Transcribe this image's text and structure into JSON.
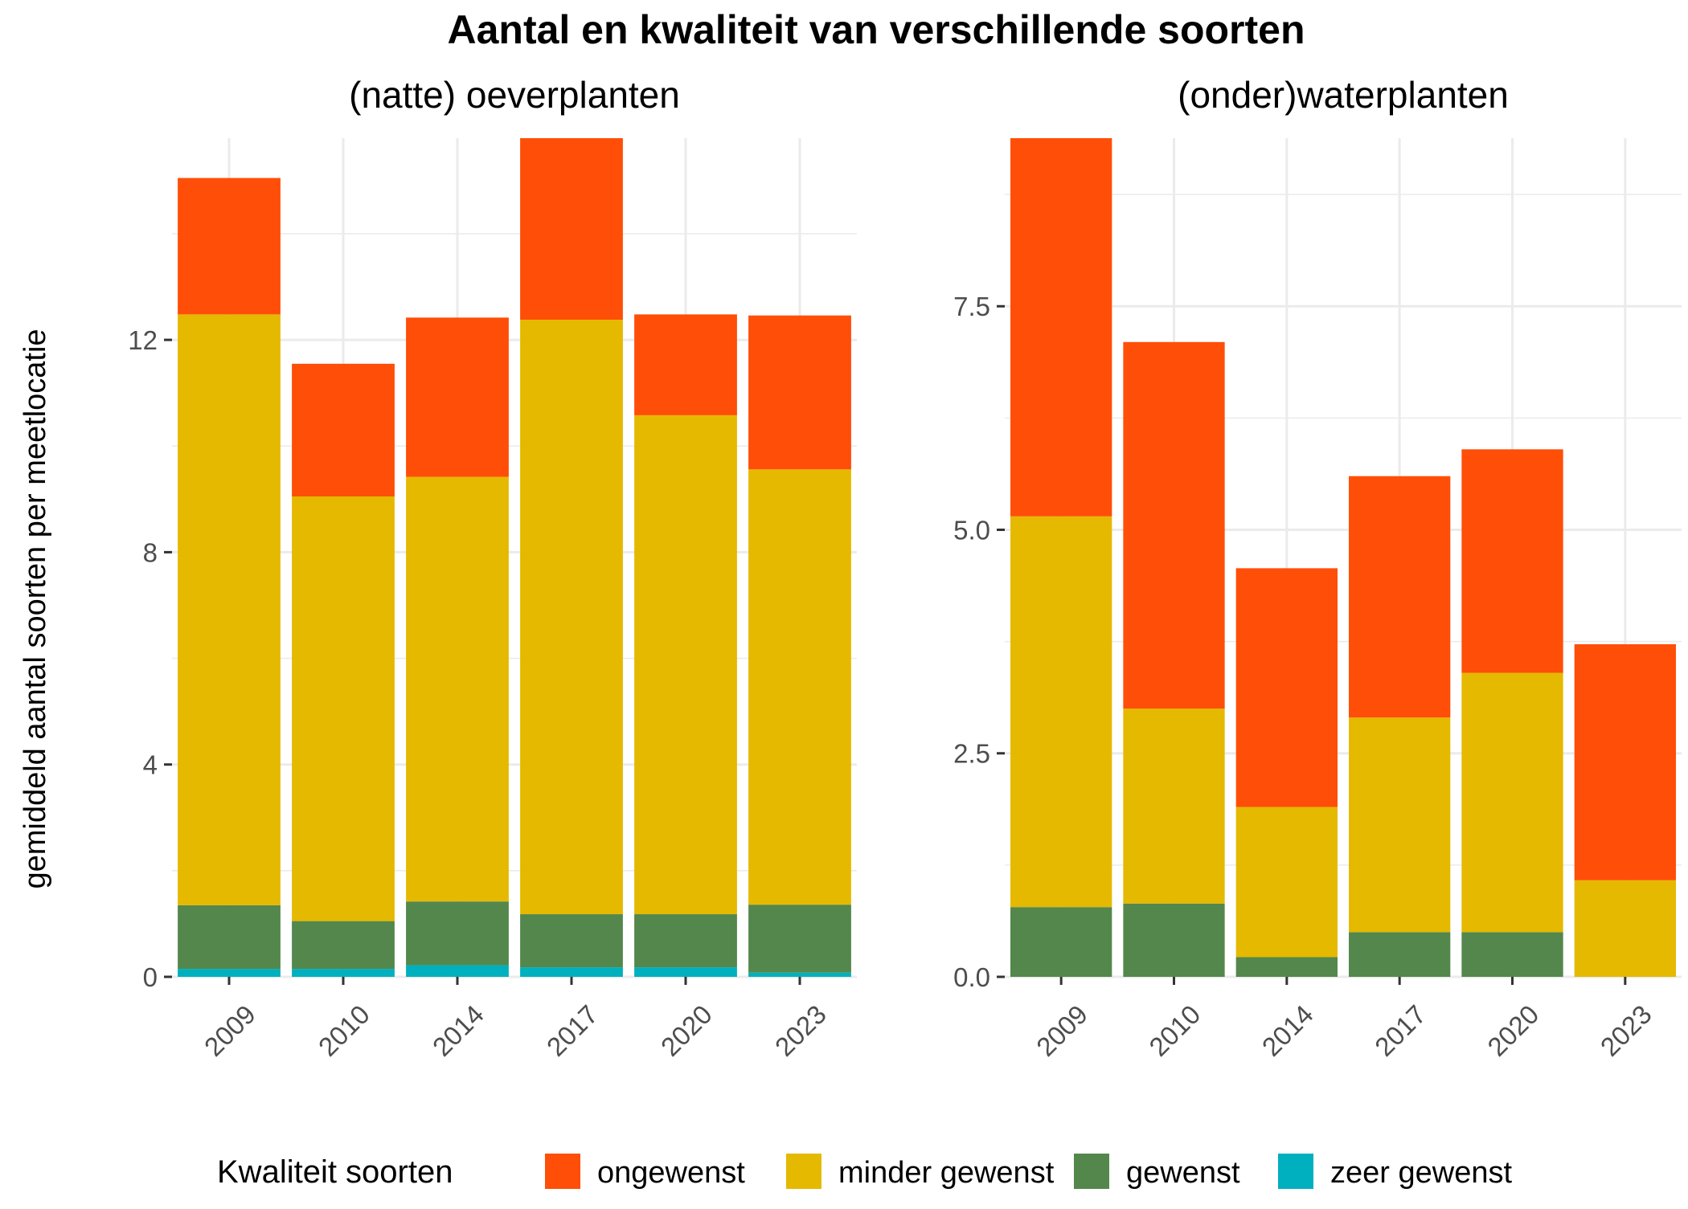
{
  "title": "Aantal en kwaliteit van verschillende soorten",
  "ylabel": "gemiddeld aantal soorten per meetlocatie",
  "legend": {
    "title": "Kwaliteit soorten",
    "position": "bottom",
    "items": [
      {
        "key": "ongewenst",
        "label": "ongewenst",
        "color": "#FF4E08"
      },
      {
        "key": "minder_gewenst",
        "label": "minder gewenst",
        "color": "#E5B900"
      },
      {
        "key": "gewenst",
        "label": "gewenst",
        "color": "#54874C"
      },
      {
        "key": "zeer_gewenst",
        "label": "zeer gewenst",
        "color": "#00B0BE"
      }
    ]
  },
  "chart_data": [
    {
      "type": "bar",
      "stacked": true,
      "panel_title": "(natte) oeverplanten",
      "categories": [
        "2009",
        "2010",
        "2014",
        "2017",
        "2020",
        "2023"
      ],
      "ylim": [
        0,
        15.8
      ],
      "yticks": [
        0,
        4,
        8,
        12
      ],
      "ytick_labels": [
        "0",
        "4",
        "8",
        "12"
      ],
      "grid": true,
      "series": [
        {
          "name": "zeer gewenst",
          "key": "zeer_gewenst",
          "values": [
            0.15,
            0.15,
            0.22,
            0.18,
            0.18,
            0.08
          ]
        },
        {
          "name": "gewenst",
          "key": "gewenst",
          "values": [
            1.2,
            0.9,
            1.2,
            1.0,
            1.0,
            1.28
          ]
        },
        {
          "name": "minder gewenst",
          "key": "minder_gewenst",
          "values": [
            11.13,
            8.0,
            8.0,
            11.2,
            9.4,
            8.2
          ]
        },
        {
          "name": "ongewenst",
          "key": "ongewenst",
          "values": [
            2.57,
            2.5,
            3.0,
            3.42,
            1.9,
            2.9
          ]
        }
      ]
    },
    {
      "type": "bar",
      "stacked": true,
      "panel_title": "(onder)waterplanten",
      "categories": [
        "2009",
        "2010",
        "2014",
        "2017",
        "2020",
        "2023"
      ],
      "ylim": [
        0,
        9.38
      ],
      "yticks": [
        0,
        2.5,
        5,
        7.5
      ],
      "ytick_labels": [
        "0.0",
        "2.5",
        "5.0",
        "7.5"
      ],
      "grid": true,
      "series": [
        {
          "name": "zeer gewenst",
          "key": "zeer_gewenst",
          "values": [
            0,
            0,
            0,
            0,
            0,
            0
          ]
        },
        {
          "name": "gewenst",
          "key": "gewenst",
          "values": [
            0.78,
            0.82,
            0.22,
            0.5,
            0.5,
            0
          ]
        },
        {
          "name": "minder gewenst",
          "key": "minder_gewenst",
          "values": [
            4.37,
            2.18,
            1.68,
            2.4,
            2.9,
            1.08
          ]
        },
        {
          "name": "ongewenst",
          "key": "ongewenst",
          "values": [
            4.23,
            4.1,
            2.67,
            2.7,
            2.5,
            2.64
          ]
        }
      ]
    }
  ]
}
